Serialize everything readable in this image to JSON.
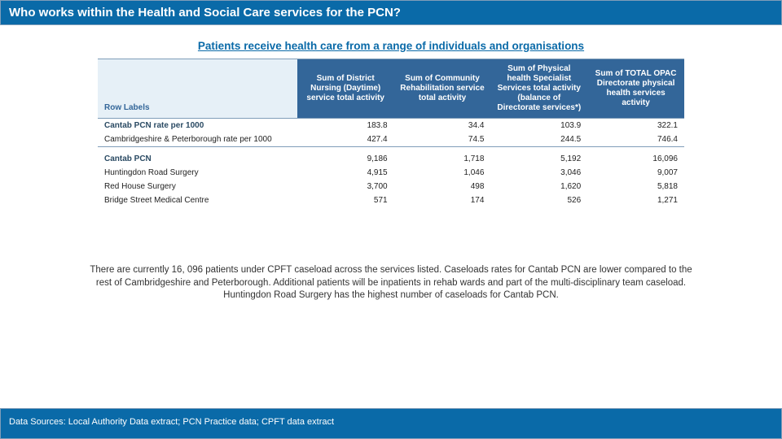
{
  "title": "Who works within the Health and Social Care services for the PCN?",
  "subtitle": "Patients receive health care from a range of individuals and organisations",
  "table": {
    "row_labels_header": "Row Labels",
    "columns": [
      "Sum of District Nursing (Daytime) service total activity",
      "Sum of Community Rehabilitation service total activity",
      "Sum of Physical health Specialist Services total activity (balance of Directorate services*)",
      "Sum of TOTAL OPAC Directorate physical health services activity"
    ],
    "col_widths": [
      "34%",
      "16.5%",
      "16.5%",
      "16.5%",
      "16.5%"
    ],
    "rate_rows": [
      {
        "label": "Cantab PCN rate per 1000",
        "bold": true,
        "values": [
          "183.8",
          "34.4",
          "103.9",
          "322.1"
        ]
      },
      {
        "label": "Cambridgeshire & Peterborough rate per 1000",
        "bold": false,
        "values": [
          "427.4",
          "74.5",
          "244.5",
          "746.4"
        ]
      }
    ],
    "count_rows": [
      {
        "label": "Cantab PCN",
        "bold": true,
        "values": [
          "9,186",
          "1,718",
          "5,192",
          "16,096"
        ]
      },
      {
        "label": "Huntingdon Road Surgery",
        "bold": false,
        "values": [
          "4,915",
          "1,046",
          "3,046",
          "9,007"
        ]
      },
      {
        "label": "Red House Surgery",
        "bold": false,
        "values": [
          "3,700",
          "498",
          "1,620",
          "5,818"
        ]
      },
      {
        "label": "Bridge Street Medical Centre",
        "bold": false,
        "values": [
          "571",
          "174",
          "526",
          "1,271"
        ]
      }
    ]
  },
  "body_text": "There are currently 16, 096 patients under CPFT caseload across the services listed.  Caseloads rates for Cantab PCN are lower compared to the rest of Cambridgeshire and Peterborough. Additional patients will be inpatients in rehab wards and part of the multi-disciplinary team caseload. Huntingdon Road Surgery has the highest number of caseloads for Cantab PCN.",
  "footer": "Data Sources: Local Authority Data extract; PCN Practice data; CPFT data extract",
  "colors": {
    "header_bg": "#336699",
    "title_bg": "#0a6aa8",
    "accent": "#0a6aa8",
    "border": "#7f9db9"
  }
}
